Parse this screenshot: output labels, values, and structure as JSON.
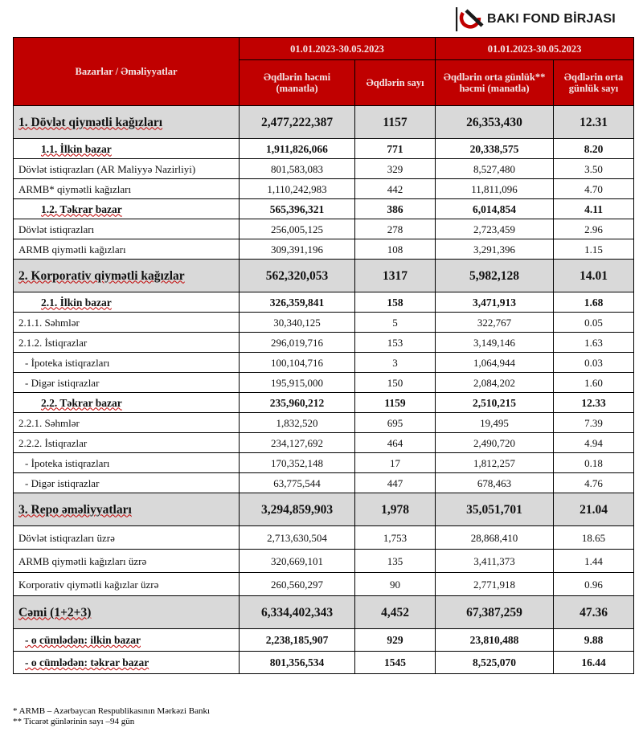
{
  "brand": {
    "name": "BAKI FOND BİRJASI",
    "color": "#c00000"
  },
  "header": {
    "corner": "Bazarlar / Əməliyyatlar",
    "period_1": "01.01.2023-30.05.2023",
    "period_2": "01.01.2023-30.05.2023",
    "col_volume": "Əqdlərin həcmi (manatla)",
    "col_count": "Əqdlərin sayı",
    "col_avg_volume": "Əqdlərin orta günlük** həcmi (manatla)",
    "col_avg_count": "Əqdlərin orta günlük sayı"
  },
  "rows": [
    {
      "label": "1. Dövlət qiymətli kağızları",
      "volume": "2,477,222,387",
      "count": "1157",
      "avg_volume": "26,353,430",
      "avg_count": "12.31"
    },
    {
      "label": "1.1. İlkin bazar",
      "volume": "1,911,826,066",
      "count": "771",
      "avg_volume": "20,338,575",
      "avg_count": "8.20"
    },
    {
      "label": "Dövlət istiqrazları (AR Maliyyə Nazirliyi)",
      "volume": "801,583,083",
      "count": "329",
      "avg_volume": "8,527,480",
      "avg_count": "3.50"
    },
    {
      "label": "ARMB* qiymətli kağızları",
      "volume": "1,110,242,983",
      "count": "442",
      "avg_volume": "11,811,096",
      "avg_count": "4.70"
    },
    {
      "label": "1.2. Təkrar bazar",
      "volume": "565,396,321",
      "count": "386",
      "avg_volume": "6,014,854",
      "avg_count": "4.11"
    },
    {
      "label": "Dövlət istiqrazları",
      "volume": "256,005,125",
      "count": "278",
      "avg_volume": "2,723,459",
      "avg_count": "2.96"
    },
    {
      "label": "ARMB qiymətli kağızları",
      "volume": "309,391,196",
      "count": "108",
      "avg_volume": "3,291,396",
      "avg_count": "1.15"
    },
    {
      "label": "2. Korporativ qiymətli kağızlar",
      "volume": "562,320,053",
      "count": "1317",
      "avg_volume": "5,982,128",
      "avg_count": "14.01"
    },
    {
      "label": "2.1. İlkin bazar",
      "volume": "326,359,841",
      "count": "158",
      "avg_volume": "3,471,913",
      "avg_count": "1.68"
    },
    {
      "label": "2.1.1. Səhmlər",
      "volume": "30,340,125",
      "count": "5",
      "avg_volume": "322,767",
      "avg_count": "0.05"
    },
    {
      "label": "2.1.2. İstiqrazlar",
      "volume": "296,019,716",
      "count": "153",
      "avg_volume": "3,149,146",
      "avg_count": "1.63"
    },
    {
      "label": "- İpoteka istiqrazları",
      "volume": "100,104,716",
      "count": "3",
      "avg_volume": "1,064,944",
      "avg_count": "0.03"
    },
    {
      "label": "- Digər istiqrazlar",
      "volume": "195,915,000",
      "count": "150",
      "avg_volume": "2,084,202",
      "avg_count": "1.60"
    },
    {
      "label": "2.2. Təkrar bazar",
      "volume": "235,960,212",
      "count": "1159",
      "avg_volume": "2,510,215",
      "avg_count": "12.33"
    },
    {
      "label": "2.2.1. Səhmlər",
      "volume": "1,832,520",
      "count": "695",
      "avg_volume": "19,495",
      "avg_count": "7.39"
    },
    {
      "label": "2.2.2. İstiqrazlar",
      "volume": "234,127,692",
      "count": "464",
      "avg_volume": "2,490,720",
      "avg_count": "4.94"
    },
    {
      "label": "- İpoteka istiqrazları",
      "volume": "170,352,148",
      "count": "17",
      "avg_volume": "1,812,257",
      "avg_count": "0.18"
    },
    {
      "label": "- Digər istiqrazlar",
      "volume": "63,775,544",
      "count": "447",
      "avg_volume": "678,463",
      "avg_count": "4.76"
    },
    {
      "label": "3. Repo əməliyyatları",
      "volume": "3,294,859,903",
      "count": "1,978",
      "avg_volume": "35,051,701",
      "avg_count": "21.04"
    },
    {
      "label": "Dövlət istiqrazları üzrə",
      "volume": "2,713,630,504",
      "count": "1,753",
      "avg_volume": "28,868,410",
      "avg_count": "18.65"
    },
    {
      "label": "ARMB qiymətli kağızları üzrə",
      "volume": "320,669,101",
      "count": "135",
      "avg_volume": "3,411,373",
      "avg_count": "1.44"
    },
    {
      "label": "Korporativ qiymətli kağızlar üzrə",
      "volume": "260,560,297",
      "count": "90",
      "avg_volume": "2,771,918",
      "avg_count": "0.96"
    },
    {
      "label": "Cəmi (1+2+3)",
      "volume": "6,334,402,343",
      "count": "4,452",
      "avg_volume": "67,387,259",
      "avg_count": "47.36"
    },
    {
      "label": "- o cümlədən: ilkin bazar",
      "volume": "2,238,185,907",
      "count": "929",
      "avg_volume": "23,810,488",
      "avg_count": "9.88"
    },
    {
      "label": "- o cümlədən: təkrar bazar",
      "volume": "801,356,534",
      "count": "1545",
      "avg_volume": "8,525,070",
      "avg_count": "16.44"
    }
  ],
  "footnotes": {
    "note_1": "* ARMB – Azərbaycan Respublikasının Mərkəzi Bankı",
    "note_2": "** Ticarət günlərinin sayı –94 gün"
  }
}
